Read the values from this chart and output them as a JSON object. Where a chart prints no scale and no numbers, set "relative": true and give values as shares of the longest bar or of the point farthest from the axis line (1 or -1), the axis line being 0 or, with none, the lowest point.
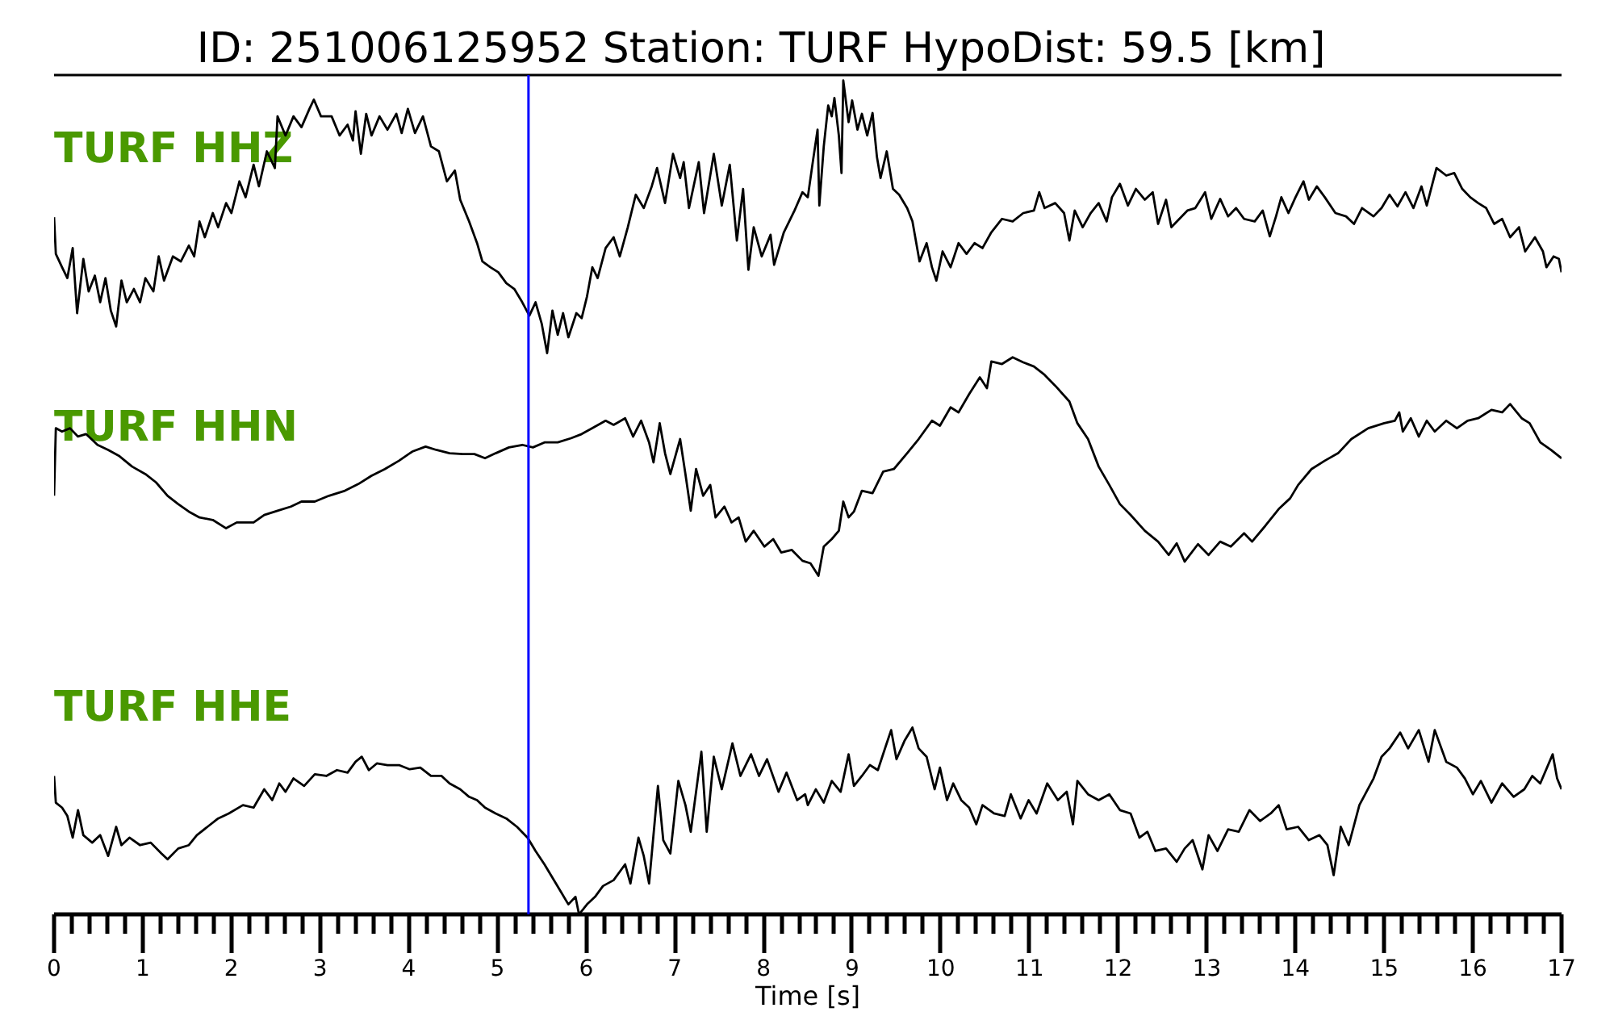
{
  "chart_data": {
    "type": "line",
    "title": "ID: 251006125952   Station: TURF   HypoDist:    59.5 [km]",
    "xlabel": "Time [s]",
    "relative": true,
    "grid": false,
    "xlim": [
      0,
      17
    ],
    "xticks": [
      0,
      {
        "value": 0.2,
        "label": null
      },
      {
        "value": 0.4,
        "label": null
      },
      {
        "value": 0.6,
        "label": null
      },
      {
        "value": 0.8,
        "label": null
      },
      1,
      {
        "value": 1.2,
        "label": null
      },
      {
        "value": 1.4,
        "label": null
      },
      {
        "value": 1.6,
        "label": null
      },
      {
        "value": 1.8,
        "label": null
      },
      2,
      {
        "value": 2.2,
        "label": null
      },
      {
        "value": 2.4,
        "label": null
      },
      {
        "value": 2.6,
        "label": null
      },
      {
        "value": 2.8,
        "label": null
      },
      3,
      {
        "value": 3.2,
        "label": null
      },
      {
        "value": 3.4,
        "label": null
      },
      {
        "value": 3.6,
        "label": null
      },
      {
        "value": 3.8,
        "label": null
      },
      4,
      {
        "value": 4.2,
        "label": null
      },
      {
        "value": 4.4,
        "label": null
      },
      {
        "value": 4.6,
        "label": null
      },
      {
        "value": 4.8,
        "label": null
      },
      5,
      {
        "value": 5.2,
        "label": null
      },
      {
        "value": 5.4,
        "label": null
      },
      {
        "value": 5.6,
        "label": null
      },
      {
        "value": 5.8,
        "label": null
      },
      6,
      {
        "value": 6.2,
        "label": null
      },
      {
        "value": 6.4,
        "label": null
      },
      {
        "value": 6.6,
        "label": null
      },
      {
        "value": 6.8,
        "label": null
      },
      7,
      {
        "value": 7.2,
        "label": null
      },
      {
        "value": 7.4,
        "label": null
      },
      {
        "value": 7.6,
        "label": null
      },
      {
        "value": 7.8,
        "label": null
      },
      8,
      {
        "value": 8.2,
        "label": null
      },
      {
        "value": 8.4,
        "label": null
      },
      {
        "value": 8.6,
        "label": null
      },
      {
        "value": 8.8,
        "label": null
      },
      9,
      {
        "value": 9.2,
        "label": null
      },
      {
        "value": 9.4,
        "label": null
      },
      {
        "value": 9.6,
        "label": null
      },
      {
        "value": 9.8,
        "label": null
      },
      10,
      {
        "value": 10.2,
        "label": null
      },
      {
        "value": 10.4,
        "label": null
      },
      {
        "value": 10.6,
        "label": null
      },
      {
        "value": 10.8,
        "label": null
      },
      11,
      {
        "value": 11.2,
        "label": null
      },
      {
        "value": 11.4,
        "label": null
      },
      {
        "value": 11.6,
        "label": null
      },
      {
        "value": 11.8,
        "label": null
      },
      12,
      {
        "value": 12.2,
        "label": null
      },
      {
        "value": 12.4,
        "label": null
      },
      {
        "value": 12.6,
        "label": null
      },
      {
        "value": 12.8,
        "label": null
      },
      13,
      {
        "value": 13.2,
        "label": null
      },
      {
        "value": 13.4,
        "label": null
      },
      {
        "value": 13.6,
        "label": null
      },
      {
        "value": 13.8,
        "label": null
      },
      14,
      {
        "value": 14.2,
        "label": null
      },
      {
        "value": 14.4,
        "label": null
      },
      {
        "value": 14.6,
        "label": null
      },
      {
        "value": 14.8,
        "label": null
      },
      15,
      {
        "value": 15.2,
        "label": null
      },
      {
        "value": 15.4,
        "label": null
      },
      {
        "value": 15.6,
        "label": null
      },
      {
        "value": 15.8,
        "label": null
      },
      16,
      {
        "value": 16.2,
        "label": null
      },
      {
        "value": 16.4,
        "label": null
      },
      {
        "value": 16.6,
        "label": null
      },
      {
        "value": 16.8,
        "label": null
      },
      17
    ],
    "ref_lines": [
      {
        "axis": "x",
        "value": 5.35,
        "color": "#0000ff"
      }
    ],
    "series": [
      {
        "name": "TURF HHZ",
        "color": "#000000",
        "x": [
          0,
          0.02,
          0.09,
          0.15,
          0.21,
          0.26,
          0.33,
          0.39,
          0.46,
          0.52,
          0.58,
          0.64,
          0.7,
          0.76,
          0.82,
          0.9,
          0.97,
          1.03,
          1.12,
          1.18,
          1.24,
          1.34,
          1.43,
          1.52,
          1.58,
          1.64,
          1.7,
          1.79,
          1.85,
          1.94,
          2.0,
          2.09,
          2.16,
          2.25,
          2.31,
          2.4,
          2.49,
          2.52,
          2.61,
          2.7,
          2.79,
          2.88,
          2.93,
          3.01,
          3.13,
          3.22,
          3.31,
          3.37,
          3.4,
          3.46,
          3.52,
          3.58,
          3.67,
          3.76,
          3.86,
          3.92,
          3.99,
          4.07,
          4.16,
          4.25,
          4.34,
          4.43,
          4.52,
          4.58,
          4.68,
          4.77,
          4.83,
          4.92,
          5.01,
          5.1,
          5.19,
          5.28,
          5.36,
          5.43,
          5.5,
          5.56,
          5.62,
          5.68,
          5.74,
          5.8,
          5.89,
          5.95,
          6.01,
          6.07,
          6.13,
          6.22,
          6.31,
          6.38,
          6.47,
          6.56,
          6.65,
          6.74,
          6.8,
          6.89,
          6.98,
          7.06,
          7.1,
          7.16,
          7.27,
          7.33,
          7.44,
          7.53,
          7.62,
          7.7,
          7.77,
          7.83,
          7.89,
          7.98,
          8.08,
          8.12,
          8.23,
          8.35,
          8.44,
          8.5,
          8.56,
          8.61,
          8.63,
          8.68,
          8.73,
          8.77,
          8.8,
          8.85,
          8.88,
          8.9,
          8.96,
          9.0,
          9.06,
          9.11,
          9.17,
          9.23,
          9.28,
          9.32,
          9.39,
          9.46,
          9.53,
          9.62,
          9.68,
          9.76,
          9.84,
          9.9,
          9.95,
          10.02,
          10.11,
          10.2,
          10.29,
          10.38,
          10.47,
          10.57,
          10.69,
          10.81,
          10.93,
          11.05,
          11.11,
          11.17,
          11.29,
          11.39,
          11.45,
          11.51,
          11.6,
          11.69,
          11.78,
          11.87,
          11.93,
          12.02,
          12.11,
          12.2,
          12.3,
          12.39,
          12.45,
          12.54,
          12.6,
          12.69,
          12.78,
          12.87,
          12.98,
          13.05,
          13.15,
          13.24,
          13.33,
          13.42,
          13.54,
          13.63,
          13.71,
          13.78,
          13.84,
          13.92,
          14.0,
          14.09,
          14.15,
          14.24,
          14.33,
          14.45,
          14.57,
          14.66,
          14.75,
          14.88,
          14.97,
          15.06,
          15.15,
          15.24,
          15.33,
          15.42,
          15.48,
          15.59,
          15.7,
          15.79,
          15.88,
          15.97,
          16.06,
          16.15,
          16.24,
          16.33,
          16.42,
          16.52,
          16.59,
          16.7,
          16.79,
          16.83,
          16.91,
          16.97,
          17.0
        ],
        "values": [
          0.836,
          0.792,
          0.776,
          0.763,
          0.799,
          0.721,
          0.786,
          0.747,
          0.766,
          0.734,
          0.763,
          0.724,
          0.705,
          0.76,
          0.734,
          0.75,
          0.734,
          0.763,
          0.747,
          0.789,
          0.76,
          0.789,
          0.783,
          0.802,
          0.789,
          0.831,
          0.812,
          0.841,
          0.824,
          0.853,
          0.841,
          0.879,
          0.86,
          0.899,
          0.873,
          0.915,
          0.895,
          0.957,
          0.934,
          0.957,
          0.944,
          0.966,
          0.977,
          0.957,
          0.957,
          0.934,
          0.947,
          0.928,
          0.963,
          0.912,
          0.96,
          0.934,
          0.957,
          0.941,
          0.96,
          0.937,
          0.966,
          0.937,
          0.957,
          0.921,
          0.915,
          0.879,
          0.892,
          0.857,
          0.831,
          0.805,
          0.783,
          0.776,
          0.77,
          0.757,
          0.75,
          0.734,
          0.718,
          0.734,
          0.708,
          0.673,
          0.724,
          0.695,
          0.721,
          0.692,
          0.721,
          0.715,
          0.741,
          0.776,
          0.763,
          0.799,
          0.812,
          0.789,
          0.824,
          0.863,
          0.847,
          0.873,
          0.895,
          0.853,
          0.912,
          0.883,
          0.902,
          0.847,
          0.902,
          0.841,
          0.912,
          0.85,
          0.899,
          0.808,
          0.87,
          0.773,
          0.824,
          0.789,
          0.815,
          0.779,
          0.818,
          0.844,
          0.866,
          0.86,
          0.905,
          0.941,
          0.85,
          0.921,
          0.97,
          0.957,
          0.979,
          0.934,
          0.889,
          1.0,
          0.95,
          0.976,
          0.941,
          0.96,
          0.934,
          0.961,
          0.908,
          0.883,
          0.915,
          0.87,
          0.863,
          0.847,
          0.831,
          0.783,
          0.805,
          0.776,
          0.76,
          0.795,
          0.776,
          0.805,
          0.792,
          0.805,
          0.799,
          0.818,
          0.834,
          0.831,
          0.841,
          0.844,
          0.866,
          0.847,
          0.853,
          0.841,
          0.808,
          0.844,
          0.824,
          0.841,
          0.853,
          0.831,
          0.86,
          0.876,
          0.85,
          0.87,
          0.857,
          0.866,
          0.828,
          0.857,
          0.824,
          0.834,
          0.844,
          0.847,
          0.866,
          0.834,
          0.858,
          0.837,
          0.847,
          0.834,
          0.831,
          0.844,
          0.813,
          0.837,
          0.86,
          0.841,
          0.86,
          0.879,
          0.857,
          0.873,
          0.86,
          0.841,
          0.837,
          0.828,
          0.847,
          0.837,
          0.847,
          0.863,
          0.849,
          0.866,
          0.847,
          0.873,
          0.85,
          0.895,
          0.886,
          0.889,
          0.87,
          0.86,
          0.853,
          0.847,
          0.828,
          0.834,
          0.812,
          0.824,
          0.795,
          0.812,
          0.795,
          0.776,
          0.789,
          0.786,
          0.77
        ]
      },
      {
        "name": "TURF HHN",
        "color": "#000000",
        "x": [
          0,
          0.02,
          0.09,
          0.18,
          0.27,
          0.36,
          0.49,
          0.61,
          0.73,
          0.88,
          1.03,
          1.15,
          1.28,
          1.4,
          1.52,
          1.64,
          1.79,
          1.94,
          2.06,
          2.25,
          2.37,
          2.52,
          2.67,
          2.79,
          2.94,
          3.1,
          3.28,
          3.43,
          3.58,
          3.73,
          3.89,
          4.04,
          4.19,
          4.31,
          4.46,
          4.61,
          4.74,
          4.86,
          4.98,
          5.13,
          5.28,
          5.4,
          5.53,
          5.68,
          5.83,
          5.95,
          6.07,
          6.22,
          6.31,
          6.44,
          6.53,
          6.62,
          6.71,
          6.76,
          6.83,
          6.89,
          6.95,
          7.06,
          7.12,
          7.18,
          7.24,
          7.32,
          7.4,
          7.46,
          7.56,
          7.64,
          7.72,
          7.8,
          7.89,
          8.01,
          8.11,
          8.2,
          8.32,
          8.44,
          8.53,
          8.62,
          8.68,
          8.77,
          8.85,
          8.9,
          8.96,
          9.02,
          9.11,
          9.23,
          9.35,
          9.47,
          9.62,
          9.75,
          9.9,
          9.99,
          10.11,
          10.2,
          10.32,
          10.44,
          10.52,
          10.57,
          10.69,
          10.81,
          10.93,
          11.05,
          11.17,
          11.29,
          11.45,
          11.54,
          11.66,
          11.78,
          11.9,
          12.02,
          12.14,
          12.3,
          12.45,
          12.57,
          12.66,
          12.75,
          12.9,
          13.02,
          13.15,
          13.27,
          13.42,
          13.51,
          13.66,
          13.81,
          13.94,
          14.03,
          14.18,
          14.33,
          14.48,
          14.63,
          14.82,
          15.0,
          15.12,
          15.17,
          15.21,
          15.3,
          15.39,
          15.48,
          15.57,
          15.7,
          15.82,
          15.94,
          16.06,
          16.21,
          16.33,
          16.42,
          16.55,
          16.64,
          16.76,
          16.88,
          17.0
        ],
        "values": [
          0.502,
          0.583,
          0.579,
          0.583,
          0.573,
          0.576,
          0.563,
          0.557,
          0.55,
          0.537,
          0.528,
          0.518,
          0.502,
          0.492,
          0.483,
          0.476,
          0.473,
          0.463,
          0.47,
          0.47,
          0.479,
          0.484,
          0.489,
          0.495,
          0.495,
          0.502,
          0.508,
          0.516,
          0.526,
          0.534,
          0.544,
          0.555,
          0.561,
          0.557,
          0.553,
          0.552,
          0.552,
          0.547,
          0.553,
          0.56,
          0.563,
          0.56,
          0.566,
          0.566,
          0.571,
          0.576,
          0.583,
          0.592,
          0.587,
          0.595,
          0.573,
          0.592,
          0.566,
          0.542,
          0.589,
          0.553,
          0.528,
          0.57,
          0.528,
          0.484,
          0.534,
          0.502,
          0.515,
          0.476,
          0.489,
          0.47,
          0.476,
          0.447,
          0.46,
          0.441,
          0.45,
          0.434,
          0.437,
          0.424,
          0.421,
          0.406,
          0.441,
          0.45,
          0.46,
          0.495,
          0.476,
          0.483,
          0.508,
          0.505,
          0.531,
          0.534,
          0.553,
          0.57,
          0.592,
          0.586,
          0.608,
          0.602,
          0.624,
          0.644,
          0.631,
          0.663,
          0.66,
          0.668,
          0.662,
          0.657,
          0.647,
          0.634,
          0.615,
          0.589,
          0.57,
          0.537,
          0.515,
          0.492,
          0.479,
          0.46,
          0.447,
          0.431,
          0.445,
          0.423,
          0.444,
          0.431,
          0.447,
          0.441,
          0.457,
          0.447,
          0.466,
          0.486,
          0.499,
          0.515,
          0.534,
          0.544,
          0.553,
          0.57,
          0.583,
          0.589,
          0.592,
          0.602,
          0.579,
          0.595,
          0.573,
          0.592,
          0.579,
          0.592,
          0.583,
          0.592,
          0.595,
          0.605,
          0.602,
          0.612,
          0.595,
          0.589,
          0.566,
          0.557,
          0.547
        ]
      },
      {
        "name": "TURF HHE",
        "color": "#000000",
        "x": [
          0,
          0.02,
          0.09,
          0.15,
          0.21,
          0.27,
          0.33,
          0.43,
          0.52,
          0.61,
          0.7,
          0.76,
          0.85,
          0.97,
          1.09,
          1.21,
          1.28,
          1.4,
          1.52,
          1.61,
          1.73,
          1.85,
          1.97,
          2.13,
          2.25,
          2.37,
          2.46,
          2.54,
          2.61,
          2.7,
          2.82,
          2.94,
          3.07,
          3.19,
          3.31,
          3.4,
          3.47,
          3.55,
          3.64,
          3.76,
          3.89,
          4.01,
          4.13,
          4.25,
          4.37,
          4.46,
          4.58,
          4.68,
          4.77,
          4.86,
          4.98,
          5.1,
          5.22,
          5.34,
          5.43,
          5.53,
          5.62,
          5.71,
          5.8,
          5.88,
          5.92,
          6.01,
          6.1,
          6.19,
          6.31,
          6.44,
          6.5,
          6.59,
          6.65,
          6.71,
          6.81,
          6.87,
          6.95,
          7.04,
          7.12,
          7.18,
          7.3,
          7.36,
          7.44,
          7.53,
          7.65,
          7.74,
          7.86,
          7.95,
          8.04,
          8.17,
          8.26,
          8.38,
          8.47,
          8.5,
          8.59,
          8.68,
          8.77,
          8.87,
          8.96,
          9.02,
          9.11,
          9.2,
          9.29,
          9.38,
          9.44,
          9.5,
          9.59,
          9.68,
          9.75,
          9.84,
          9.93,
          9.99,
          10.07,
          10.14,
          10.23,
          10.32,
          10.4,
          10.47,
          10.6,
          10.72,
          10.79,
          10.9,
          10.99,
          11.08,
          11.2,
          11.32,
          11.42,
          11.49,
          11.54,
          11.66,
          11.78,
          11.9,
          12.02,
          12.14,
          12.24,
          12.33,
          12.42,
          12.54,
          12.66,
          12.75,
          12.84,
          12.95,
          13.02,
          13.12,
          13.24,
          13.36,
          13.48,
          13.6,
          13.72,
          13.81,
          13.9,
          14.03,
          14.15,
          14.27,
          14.36,
          14.43,
          14.51,
          14.6,
          14.72,
          14.88,
          14.97,
          15.06,
          15.18,
          15.27,
          15.39,
          15.5,
          15.57,
          15.7,
          15.82,
          15.91,
          16.0,
          16.09,
          16.21,
          16.33,
          16.46,
          16.58,
          16.67,
          16.76,
          16.9,
          16.95,
          17.0
        ],
        "values": [
          0.166,
          0.134,
          0.128,
          0.118,
          0.092,
          0.125,
          0.095,
          0.086,
          0.095,
          0.07,
          0.105,
          0.083,
          0.092,
          0.083,
          0.086,
          0.073,
          0.066,
          0.079,
          0.083,
          0.095,
          0.105,
          0.115,
          0.121,
          0.131,
          0.128,
          0.15,
          0.137,
          0.157,
          0.147,
          0.163,
          0.154,
          0.168,
          0.166,
          0.173,
          0.17,
          0.183,
          0.189,
          0.173,
          0.181,
          0.179,
          0.179,
          0.174,
          0.176,
          0.166,
          0.166,
          0.157,
          0.15,
          0.141,
          0.137,
          0.128,
          0.121,
          0.115,
          0.105,
          0.092,
          0.076,
          0.06,
          0.044,
          0.028,
          0.012,
          0.021,
          0,
          0.012,
          0.021,
          0.034,
          0.041,
          0.06,
          0.037,
          0.092,
          0.07,
          0.037,
          0.154,
          0.089,
          0.073,
          0.16,
          0.131,
          0.099,
          0.195,
          0.099,
          0.189,
          0.15,
          0.205,
          0.166,
          0.192,
          0.166,
          0.186,
          0.147,
          0.17,
          0.137,
          0.144,
          0.131,
          0.15,
          0.134,
          0.16,
          0.147,
          0.192,
          0.154,
          0.166,
          0.179,
          0.173,
          0.202,
          0.221,
          0.186,
          0.208,
          0.224,
          0.199,
          0.189,
          0.15,
          0.176,
          0.137,
          0.157,
          0.137,
          0.128,
          0.108,
          0.131,
          0.121,
          0.118,
          0.144,
          0.115,
          0.137,
          0.121,
          0.157,
          0.137,
          0.147,
          0.108,
          0.16,
          0.144,
          0.137,
          0.144,
          0.125,
          0.121,
          0.092,
          0.099,
          0.076,
          0.079,
          0.063,
          0.079,
          0.089,
          0.054,
          0.095,
          0.076,
          0.102,
          0.099,
          0.125,
          0.112,
          0.121,
          0.131,
          0.102,
          0.105,
          0.089,
          0.095,
          0.083,
          0.047,
          0.105,
          0.083,
          0.131,
          0.163,
          0.189,
          0.199,
          0.218,
          0.199,
          0.221,
          0.183,
          0.221,
          0.183,
          0.176,
          0.163,
          0.144,
          0.16,
          0.134,
          0.157,
          0.141,
          0.15,
          0.166,
          0.157,
          0.192,
          0.163,
          0.15
        ]
      }
    ]
  }
}
